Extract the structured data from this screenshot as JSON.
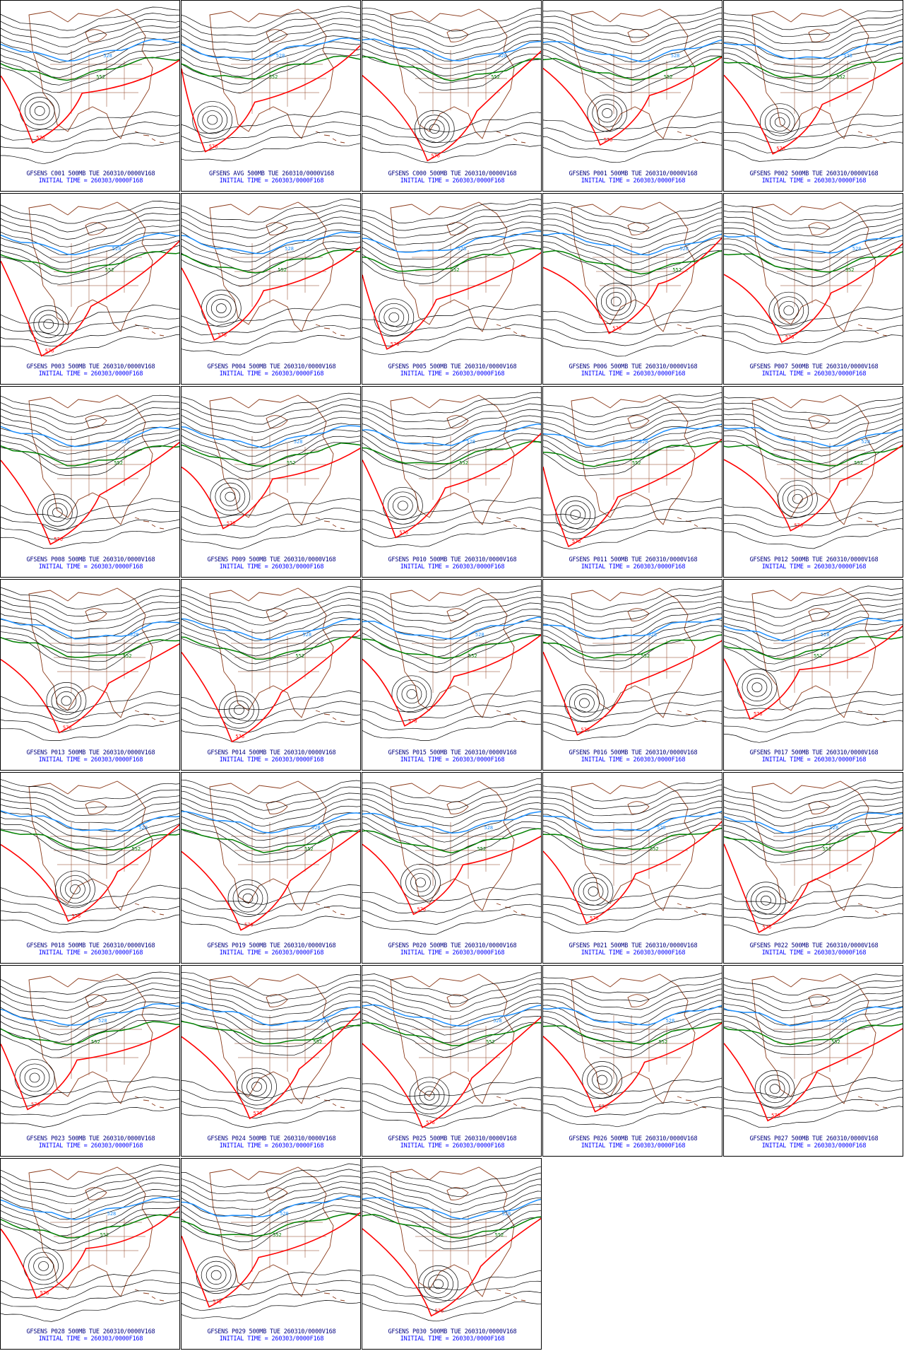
{
  "map": {
    "contour_colors": {
      "black": "#000000",
      "blue": "#1e90ff",
      "green": "#008000",
      "red": "#ff0000",
      "geography": "#8b3a1a"
    },
    "contour_labels": {
      "blue": "528",
      "green": "552",
      "red": "576"
    }
  },
  "panels": [
    {
      "label": "GFSENS C001 500MB TUE 260310/0000V168",
      "init": "INITIAL TIME = 260303/0000F168"
    },
    {
      "label": "GFSENS AVG 500MB TUE 260310/0000V168",
      "init": "INITIAL TIME = 260303/0000F168"
    },
    {
      "label": "GFSENS C000 500MB TUE 260310/0000V168",
      "init": "INITIAL TIME = 260303/0000F168"
    },
    {
      "label": "GFSENS P001 500MB TUE 260310/0000V168",
      "init": "INITIAL TIME = 260303/0000F168"
    },
    {
      "label": "GFSENS P002 500MB TUE 260310/0000V168",
      "init": "INITIAL TIME = 260303/0000F168"
    },
    {
      "label": "GFSENS P003 500MB TUE 260310/0000V168",
      "init": "INITIAL TIME = 260303/0000F168"
    },
    {
      "label": "GFSENS P004 500MB TUE 260310/0000V168",
      "init": "INITIAL TIME = 260303/0000F168"
    },
    {
      "label": "GFSENS P005 500MB TUE 260310/0000V168",
      "init": "INITIAL TIME = 260303/0000F168"
    },
    {
      "label": "GFSENS P006 500MB TUE 260310/0000V168",
      "init": "INITIAL TIME = 260303/0000F168"
    },
    {
      "label": "GFSENS P007 500MB TUE 260310/0000V168",
      "init": "INITIAL TIME = 260303/0000F168"
    },
    {
      "label": "GFSENS P008 500MB TUE 260310/0000V168",
      "init": "INITIAL TIME = 260303/0000F168"
    },
    {
      "label": "GFSENS P009 500MB TUE 260310/0000V168",
      "init": "INITIAL TIME = 260303/0000F168"
    },
    {
      "label": "GFSENS P010 500MB TUE 260310/0000V168",
      "init": "INITIAL TIME = 260303/0000F168"
    },
    {
      "label": "GFSENS P011 500MB TUE 260310/0000V168",
      "init": "INITIAL TIME = 260303/0000F168"
    },
    {
      "label": "GFSENS P012 500MB TUE 260310/0000V168",
      "init": "INITIAL TIME = 260303/0000F168"
    },
    {
      "label": "GFSENS P013 500MB TUE 260310/0000V168",
      "init": "INITIAL TIME = 260303/0000F168"
    },
    {
      "label": "GFSENS P014 500MB TUE 260310/0000V168",
      "init": "INITIAL TIME = 260303/0000F168"
    },
    {
      "label": "GFSENS P015 500MB TUE 260310/0000V168",
      "init": "INITIAL TIME = 260303/0000F168"
    },
    {
      "label": "GFSENS P016 500MB TUE 260310/0000V168",
      "init": "INITIAL TIME = 260303/0000F168"
    },
    {
      "label": "GFSENS P017 500MB TUE 260310/0000V168",
      "init": "INITIAL TIME = 260303/0000F168"
    },
    {
      "label": "GFSENS P018 500MB TUE 260310/0000V168",
      "init": "INITIAL TIME = 260303/0000F168"
    },
    {
      "label": "GFSENS P019 500MB TUE 260310/0000V168",
      "init": "INITIAL TIME = 260303/0000F168"
    },
    {
      "label": "GFSENS P020 500MB TUE 260310/0000V168",
      "init": "INITIAL TIME = 260303/0000F168"
    },
    {
      "label": "GFSENS P021 500MB TUE 260310/0000V168",
      "init": "INITIAL TIME = 260303/0000F168"
    },
    {
      "label": "GFSENS P022 500MB TUE 260310/0000V168",
      "init": "INITIAL TIME = 260303/0000F168"
    },
    {
      "label": "GFSENS P023 500MB TUE 260310/0000V168",
      "init": "INITIAL TIME = 260303/0000F168"
    },
    {
      "label": "GFSENS P024 500MB TUE 260310/0000V168",
      "init": "INITIAL TIME = 260303/0000F168"
    },
    {
      "label": "GFSENS P025 500MB TUE 260310/0000V168",
      "init": "INITIAL TIME = 260303/0000F168"
    },
    {
      "label": "GFSENS P026 500MB TUE 260310/0000V168",
      "init": "INITIAL TIME = 260303/0000F168"
    },
    {
      "label": "GFSENS P027 500MB TUE 260310/0000V168",
      "init": "INITIAL TIME = 260303/0000F168"
    },
    {
      "label": "GFSENS P028 500MB TUE 260310/0000V168",
      "init": "INITIAL TIME = 260303/0000F168"
    },
    {
      "label": "GFSENS P029 500MB TUE 260310/0000V168",
      "init": "INITIAL TIME = 260303/0000F168"
    },
    {
      "label": "GFSENS P030 500MB TUE 260310/0000V168",
      "init": "INITIAL TIME = 260303/0000F168"
    }
  ]
}
